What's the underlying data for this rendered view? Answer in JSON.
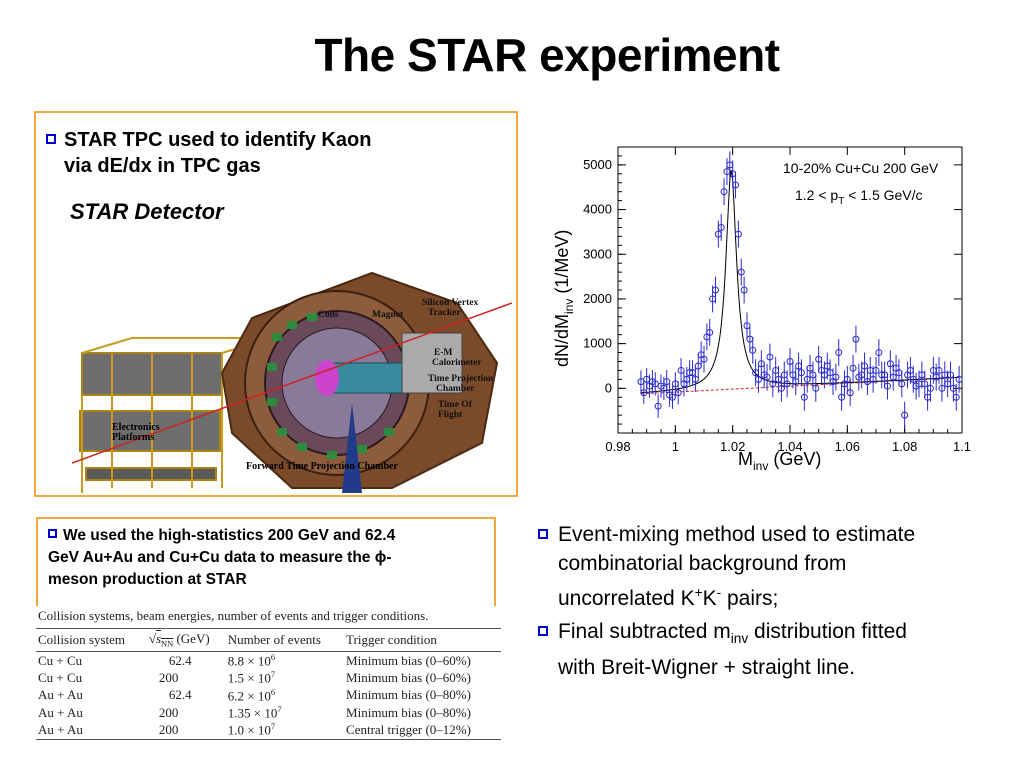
{
  "slide": {
    "title": "The STAR experiment"
  },
  "left_box": {
    "bullet_line1": "STAR TPC used to identify Kaon",
    "bullet_line2": "via dE/dx in TPC gas",
    "detector_title": "STAR Detector",
    "labels": {
      "coils": "Coils",
      "magnet": "Magnet",
      "svt": "Silicon Vertex\nTracker",
      "emc": "E-M\nCalorimeter",
      "tpc": "Time Projection\nChamber",
      "tof": "Time Of\nFlight",
      "electronics": "Electronics\nPlatforms",
      "ftpc": "Forward Time Projection Chamber"
    }
  },
  "small_box": {
    "line1": "We used the high-statistics 200 GeV and 62.4",
    "line2": "GeV Au+Au and Cu+Cu data to measure the ϕ-",
    "line3": "meson production at STAR"
  },
  "table": {
    "caption": "Collision systems, beam energies, number of events and trigger conditions.",
    "headers": [
      "Collision system",
      "(GeV)",
      "Number of events",
      "Trigger condition"
    ],
    "sqrt_label": "s",
    "sqrt_sub": "NN",
    "rows": [
      {
        "system": "Cu + Cu",
        "energy": "62.4",
        "events_base": "8.8 × 10",
        "events_exp": "6",
        "trigger": "Minimum bias (0–60%)"
      },
      {
        "system": "Cu + Cu",
        "energy": "200",
        "events_base": "1.5 × 10",
        "events_exp": "7",
        "trigger": "Minimum bias (0–60%)"
      },
      {
        "system": "Au + Au",
        "energy": "62.4",
        "events_base": "6.2 × 10",
        "events_exp": "6",
        "trigger": "Minimum bias (0–80%)"
      },
      {
        "system": "Au + Au",
        "energy": "200",
        "events_base": "1.35 × 10",
        "events_exp": "7",
        "trigger": "Minimum bias (0–80%)"
      },
      {
        "system": "Au + Au",
        "energy": "200",
        "events_base": "1.0 × 10",
        "events_exp": "7",
        "trigger": "Central trigger (0–12%)"
      }
    ]
  },
  "right_bullets": {
    "b1_line1": "Event-mixing method used to estimate",
    "b1_line2": "combinatorial background from",
    "b1_line3_pre": "uncorrelated K",
    "b1_sup1": "+",
    "b1_mid": "K",
    "b1_sup2": "-",
    "b1_post": " pairs;",
    "b2_pre": "Final subtracted m",
    "b2_sub": "inv",
    "b2_post": " distribution fitted",
    "b2_line2": "with Breit-Wigner + straight line."
  },
  "chart_data": {
    "type": "scatter",
    "annotation1": "10-20% Cu+Cu 200 GeV",
    "annotation2_pre": "1.2 < p",
    "annotation2_sub": "T",
    "annotation2_post": " < 1.5 GeV/c",
    "ylabel_pre": "dN/dM",
    "ylabel_sub": "inv",
    "ylabel_post": " (1/MeV)",
    "xlabel_pre": "M",
    "xlabel_sub": "inv",
    "xlabel_post": " (GeV)",
    "xlim": [
      0.98,
      1.1
    ],
    "ylim": [
      -1000,
      5400
    ],
    "xticks": [
      "0.98",
      "1",
      "1.02",
      "1.04",
      "1.06",
      "1.08",
      "1.1"
    ],
    "xtick_values": [
      0.98,
      1.0,
      1.02,
      1.04,
      1.06,
      1.08,
      1.1
    ],
    "yticks": [
      "0",
      "1000",
      "2000",
      "3000",
      "4000",
      "5000"
    ],
    "ytick_values": [
      0,
      1000,
      2000,
      3000,
      4000,
      5000
    ],
    "fit": {
      "m0": 1.0195,
      "gamma": 0.0045,
      "amp": 4900,
      "bg_a": -150,
      "bg_b": 5500
    },
    "points": [
      {
        "x": 0.988,
        "y": 150,
        "e": 250
      },
      {
        "x": 0.989,
        "y": -100,
        "e": 250
      },
      {
        "x": 0.99,
        "y": 200,
        "e": 250
      },
      {
        "x": 0.991,
        "y": 50,
        "e": 260
      },
      {
        "x": 0.992,
        "y": 150,
        "e": 260
      },
      {
        "x": 0.993,
        "y": 100,
        "e": 260
      },
      {
        "x": 0.994,
        "y": -400,
        "e": 260
      },
      {
        "x": 0.995,
        "y": 50,
        "e": 260
      },
      {
        "x": 0.996,
        "y": 0,
        "e": 260
      },
      {
        "x": 0.997,
        "y": 150,
        "e": 260
      },
      {
        "x": 0.998,
        "y": -150,
        "e": 260
      },
      {
        "x": 0.999,
        "y": -200,
        "e": 260
      },
      {
        "x": 1.0,
        "y": 100,
        "e": 260
      },
      {
        "x": 1.001,
        "y": -100,
        "e": 260
      },
      {
        "x": 1.002,
        "y": 400,
        "e": 280
      },
      {
        "x": 1.003,
        "y": 100,
        "e": 280
      },
      {
        "x": 1.004,
        "y": 200,
        "e": 280
      },
      {
        "x": 1.005,
        "y": 350,
        "e": 280
      },
      {
        "x": 1.006,
        "y": 350,
        "e": 280
      },
      {
        "x": 1.007,
        "y": 200,
        "e": 280
      },
      {
        "x": 1.008,
        "y": 500,
        "e": 280
      },
      {
        "x": 1.009,
        "y": 750,
        "e": 300
      },
      {
        "x": 1.01,
        "y": 650,
        "e": 300
      },
      {
        "x": 1.011,
        "y": 1150,
        "e": 300
      },
      {
        "x": 1.012,
        "y": 1250,
        "e": 300
      },
      {
        "x": 1.013,
        "y": 2000,
        "e": 300
      },
      {
        "x": 1.014,
        "y": 2200,
        "e": 300
      },
      {
        "x": 1.015,
        "y": 3450,
        "e": 300
      },
      {
        "x": 1.016,
        "y": 3600,
        "e": 300
      },
      {
        "x": 1.017,
        "y": 4400,
        "e": 300
      },
      {
        "x": 1.018,
        "y": 4850,
        "e": 300
      },
      {
        "x": 1.019,
        "y": 5000,
        "e": 300
      },
      {
        "x": 1.02,
        "y": 4800,
        "e": 300
      },
      {
        "x": 1.021,
        "y": 4550,
        "e": 300
      },
      {
        "x": 1.022,
        "y": 3450,
        "e": 300
      },
      {
        "x": 1.023,
        "y": 2600,
        "e": 300
      },
      {
        "x": 1.024,
        "y": 2200,
        "e": 300
      },
      {
        "x": 1.025,
        "y": 1400,
        "e": 300
      },
      {
        "x": 1.026,
        "y": 1100,
        "e": 300
      },
      {
        "x": 1.027,
        "y": 850,
        "e": 300
      },
      {
        "x": 1.028,
        "y": 350,
        "e": 300
      },
      {
        "x": 1.029,
        "y": 200,
        "e": 300
      },
      {
        "x": 1.03,
        "y": 550,
        "e": 300
      },
      {
        "x": 1.031,
        "y": 300,
        "e": 300
      },
      {
        "x": 1.032,
        "y": 250,
        "e": 300
      },
      {
        "x": 1.033,
        "y": 700,
        "e": 300
      },
      {
        "x": 1.034,
        "y": 100,
        "e": 300
      },
      {
        "x": 1.035,
        "y": 400,
        "e": 300
      },
      {
        "x": 1.036,
        "y": 200,
        "e": 300
      },
      {
        "x": 1.037,
        "y": 0,
        "e": 300
      },
      {
        "x": 1.038,
        "y": 300,
        "e": 300
      },
      {
        "x": 1.039,
        "y": 100,
        "e": 300
      },
      {
        "x": 1.04,
        "y": 600,
        "e": 300
      },
      {
        "x": 1.041,
        "y": 300,
        "e": 300
      },
      {
        "x": 1.042,
        "y": 150,
        "e": 300
      },
      {
        "x": 1.043,
        "y": 500,
        "e": 300
      },
      {
        "x": 1.044,
        "y": 350,
        "e": 300
      },
      {
        "x": 1.045,
        "y": -200,
        "e": 300
      },
      {
        "x": 1.046,
        "y": 200,
        "e": 300
      },
      {
        "x": 1.047,
        "y": 450,
        "e": 300
      },
      {
        "x": 1.048,
        "y": 300,
        "e": 300
      },
      {
        "x": 1.049,
        "y": 0,
        "e": 300
      },
      {
        "x": 1.05,
        "y": 650,
        "e": 300
      },
      {
        "x": 1.051,
        "y": 400,
        "e": 300
      },
      {
        "x": 1.052,
        "y": 300,
        "e": 300
      },
      {
        "x": 1.053,
        "y": 500,
        "e": 300
      },
      {
        "x": 1.054,
        "y": 350,
        "e": 300
      },
      {
        "x": 1.055,
        "y": 150,
        "e": 300
      },
      {
        "x": 1.056,
        "y": 250,
        "e": 300
      },
      {
        "x": 1.057,
        "y": 800,
        "e": 300
      },
      {
        "x": 1.058,
        "y": -200,
        "e": 300
      },
      {
        "x": 1.059,
        "y": 100,
        "e": 300
      },
      {
        "x": 1.06,
        "y": 200,
        "e": 300
      },
      {
        "x": 1.061,
        "y": -100,
        "e": 300
      },
      {
        "x": 1.062,
        "y": 450,
        "e": 300
      },
      {
        "x": 1.063,
        "y": 1100,
        "e": 300
      },
      {
        "x": 1.064,
        "y": 250,
        "e": 300
      },
      {
        "x": 1.065,
        "y": 300,
        "e": 300
      },
      {
        "x": 1.066,
        "y": 500,
        "e": 300
      },
      {
        "x": 1.067,
        "y": 150,
        "e": 300
      },
      {
        "x": 1.068,
        "y": 400,
        "e": 300
      },
      {
        "x": 1.069,
        "y": 200,
        "e": 300
      },
      {
        "x": 1.07,
        "y": 400,
        "e": 300
      },
      {
        "x": 1.071,
        "y": 800,
        "e": 300
      },
      {
        "x": 1.072,
        "y": 300,
        "e": 300
      },
      {
        "x": 1.073,
        "y": 300,
        "e": 300
      },
      {
        "x": 1.074,
        "y": 50,
        "e": 300
      },
      {
        "x": 1.075,
        "y": 550,
        "e": 300
      },
      {
        "x": 1.076,
        "y": 250,
        "e": 300
      },
      {
        "x": 1.077,
        "y": 450,
        "e": 300
      },
      {
        "x": 1.078,
        "y": 350,
        "e": 300
      },
      {
        "x": 1.079,
        "y": 100,
        "e": 300
      },
      {
        "x": 1.08,
        "y": -600,
        "e": 300
      },
      {
        "x": 1.081,
        "y": 300,
        "e": 300
      },
      {
        "x": 1.082,
        "y": 400,
        "e": 300
      },
      {
        "x": 1.083,
        "y": 200,
        "e": 300
      },
      {
        "x": 1.084,
        "y": 50,
        "e": 300
      },
      {
        "x": 1.085,
        "y": 100,
        "e": 300
      },
      {
        "x": 1.086,
        "y": 300,
        "e": 300
      },
      {
        "x": 1.087,
        "y": 100,
        "e": 300
      },
      {
        "x": 1.088,
        "y": -200,
        "e": 300
      },
      {
        "x": 1.089,
        "y": 0,
        "e": 300
      },
      {
        "x": 1.09,
        "y": 400,
        "e": 300
      },
      {
        "x": 1.091,
        "y": 250,
        "e": 300
      },
      {
        "x": 1.092,
        "y": 400,
        "e": 300
      },
      {
        "x": 1.093,
        "y": 0,
        "e": 300
      },
      {
        "x": 1.094,
        "y": 300,
        "e": 300
      },
      {
        "x": 1.095,
        "y": 100,
        "e": 300
      },
      {
        "x": 1.096,
        "y": 300,
        "e": 300
      },
      {
        "x": 1.097,
        "y": 0,
        "e": 300
      },
      {
        "x": 1.098,
        "y": -200,
        "e": 300
      },
      {
        "x": 1.099,
        "y": 200,
        "e": 300
      }
    ]
  }
}
